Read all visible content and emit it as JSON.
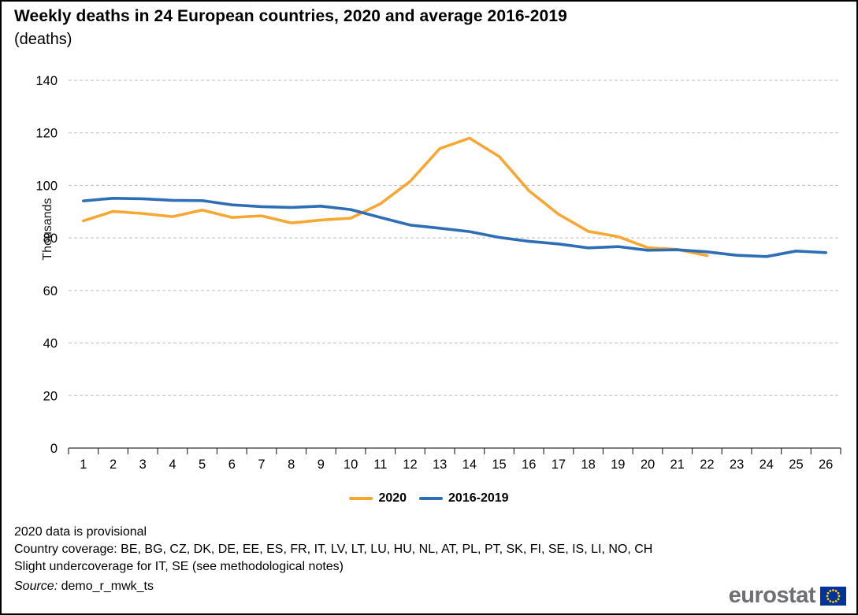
{
  "chart_data": {
    "type": "line",
    "title": "Weekly deaths in 24 European countries, 2020 and average 2016-2019",
    "subtitle": "(deaths)",
    "ylabel": "Thousands",
    "xlabel": "",
    "x": [
      1,
      2,
      3,
      4,
      5,
      6,
      7,
      8,
      9,
      10,
      11,
      12,
      13,
      14,
      15,
      16,
      17,
      18,
      19,
      20,
      21,
      22,
      23,
      24,
      25,
      26
    ],
    "ylim": [
      0,
      140
    ],
    "ytick_step": 20,
    "grid": "horizontal-dashed",
    "legend_position": "bottom-center",
    "series": [
      {
        "name": "2020",
        "color": "#F7A733",
        "values": [
          86.5,
          90.1,
          89.3,
          88.1,
          90.6,
          87.8,
          88.4,
          85.7,
          86.8,
          87.5,
          93,
          101.5,
          114,
          118,
          111,
          98,
          89,
          82.5,
          80.5,
          76.3,
          75.6,
          73.3
        ]
      },
      {
        "name": "2016-2019",
        "color": "#2D6EB5",
        "values": [
          94.1,
          95.1,
          94.9,
          94.3,
          94.2,
          92.6,
          91.9,
          91.6,
          92.1,
          90.8,
          87.8,
          84.9,
          83.7,
          82.4,
          80.2,
          78.7,
          77.7,
          76.2,
          76.7,
          75.3,
          75.5,
          74.7,
          73.4,
          72.9,
          75,
          74.4
        ]
      }
    ]
  },
  "footer": {
    "notes": [
      "2020 data is provisional",
      "Country coverage: BE, BG, CZ, DK, DE, EE, ES, FR, IT, LV, LT, LU, HU, NL, AT, PL, PT, SK, FI, SE, IS, LI, NO, CH",
      "Slight undercoverage for IT, SE (see methodological notes)"
    ],
    "source_label": "Source:",
    "source_value": "demo_r_mwk_ts"
  },
  "logo": {
    "text": "eurostat",
    "flag_color": "#003399",
    "star_color": "#FFCC00"
  }
}
